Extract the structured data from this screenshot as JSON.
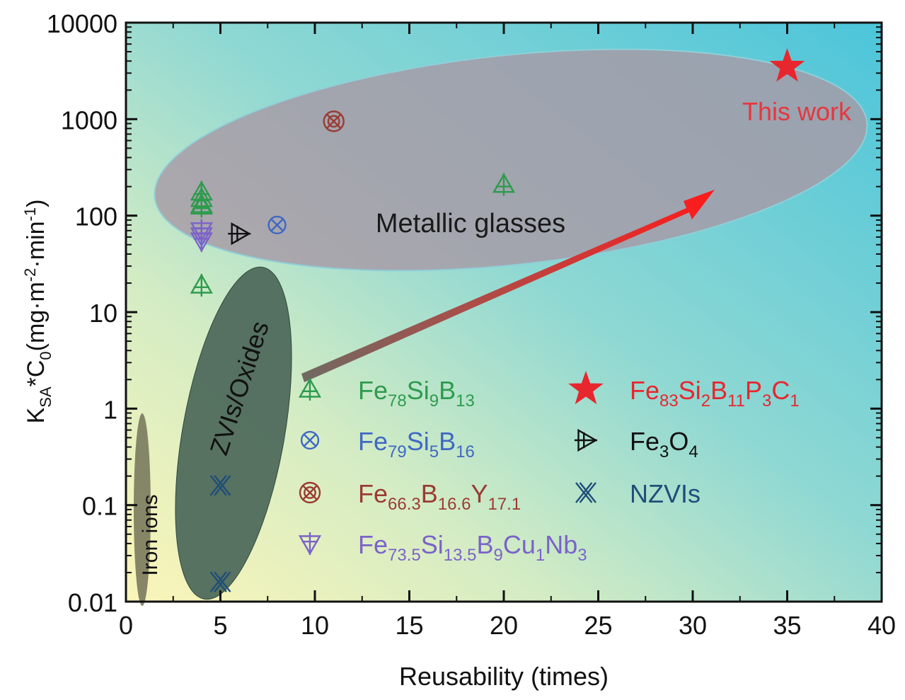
{
  "chart_data": {
    "type": "scatter",
    "title": "",
    "xlabel": "Reusability (times)",
    "ylabel_parts": [
      "K",
      "SA",
      "*C",
      "0",
      "(mg·m",
      "-2",
      "·min",
      "-1",
      ")"
    ],
    "xlim": [
      0,
      40
    ],
    "ylim": [
      0.01,
      10000
    ],
    "yscale": "log",
    "xticks": [
      0,
      5,
      10,
      15,
      20,
      25,
      30,
      35,
      40
    ],
    "yticks": [
      0.01,
      0.1,
      1,
      10,
      100,
      1000,
      10000
    ],
    "ytick_labels": [
      "0.01",
      "0.1",
      "1",
      "10",
      "100",
      "1000",
      "10000"
    ],
    "regions": [
      {
        "label": "Iron ions",
        "color": "#7a7a5e"
      },
      {
        "label": "ZVIs/Oxides",
        "color": "#4f6a5c"
      },
      {
        "label": "Metallic glasses",
        "color": "#a79aa6"
      }
    ],
    "annotations": [
      {
        "text": "This work",
        "color": "#e8363e"
      }
    ],
    "arrow": {
      "from": [
        9.5,
        2
      ],
      "to": [
        31,
        200
      ],
      "color": "#ee2a2a"
    },
    "series": [
      {
        "name": "Fe78Si9B13",
        "label_parts": [
          [
            "Fe",
            ""
          ],
          [
            "78",
            "sub"
          ],
          [
            "Si",
            ""
          ],
          [
            "9",
            "sub"
          ],
          [
            "B",
            ""
          ],
          [
            "13",
            "sub"
          ]
        ],
        "marker": "triangle-cross",
        "color": "#2e9b4e",
        "points": [
          [
            4,
            175
          ],
          [
            4,
            150
          ],
          [
            4,
            130
          ],
          [
            4,
            125
          ],
          [
            4,
            19
          ],
          [
            20,
            210
          ]
        ]
      },
      {
        "name": "Fe79Si5B16",
        "label_parts": [
          [
            "Fe",
            ""
          ],
          [
            "79",
            "sub"
          ],
          [
            "Si",
            ""
          ],
          [
            "5",
            "sub"
          ],
          [
            "B",
            ""
          ],
          [
            "16",
            "sub"
          ]
        ],
        "marker": "circle-x",
        "color": "#3f68c4",
        "points": [
          [
            8,
            80
          ]
        ]
      },
      {
        "name": "Fe66.3B16.6Y17.1",
        "label_parts": [
          [
            "Fe",
            ""
          ],
          [
            "66.3",
            "sub"
          ],
          [
            "B",
            ""
          ],
          [
            "16.6",
            "sub"
          ],
          [
            "Y",
            ""
          ],
          [
            "17.1",
            "sub"
          ]
        ],
        "marker": "double-circle-x",
        "color": "#9a3c34",
        "points": [
          [
            11,
            950
          ]
        ]
      },
      {
        "name": "Fe73.5Si13.5B9Cu1Nb3",
        "label_parts": [
          [
            "Fe",
            ""
          ],
          [
            "73.5",
            "sub"
          ],
          [
            "Si",
            ""
          ],
          [
            "13.5",
            "sub"
          ],
          [
            "B",
            ""
          ],
          [
            "9",
            "sub"
          ],
          [
            "Cu",
            ""
          ],
          [
            "1",
            "sub"
          ],
          [
            "Nb",
            ""
          ],
          [
            "3",
            "sub"
          ]
        ],
        "marker": "down-triangle-cross",
        "color": "#7b63c9",
        "points": [
          [
            4,
            70
          ],
          [
            4,
            62
          ],
          [
            4,
            55
          ]
        ]
      },
      {
        "name": "Fe83Si2B11P3C1",
        "label_parts": [
          [
            "Fe",
            ""
          ],
          [
            "83",
            "sub"
          ],
          [
            "Si",
            ""
          ],
          [
            "2",
            "sub"
          ],
          [
            "B",
            ""
          ],
          [
            "11",
            "sub"
          ],
          [
            "P",
            ""
          ],
          [
            "3",
            "sub"
          ],
          [
            "C",
            ""
          ],
          [
            "1",
            "sub"
          ]
        ],
        "marker": "star",
        "color": "#e8262e",
        "points": [
          [
            35,
            3500
          ]
        ]
      },
      {
        "name": "Fe3O4",
        "label_parts": [
          [
            "Fe",
            ""
          ],
          [
            "3",
            "sub"
          ],
          [
            "O",
            ""
          ],
          [
            "4",
            "sub"
          ]
        ],
        "marker": "right-triangle-cross",
        "color": "#111111",
        "points": [
          [
            6,
            65
          ]
        ]
      },
      {
        "name": "NZVIs",
        "label_parts": [
          [
            "NZVIs",
            ""
          ]
        ],
        "marker": "double-x",
        "color": "#1f4e79",
        "points": [
          [
            5,
            0.16
          ],
          [
            5,
            0.016
          ]
        ]
      }
    ]
  }
}
